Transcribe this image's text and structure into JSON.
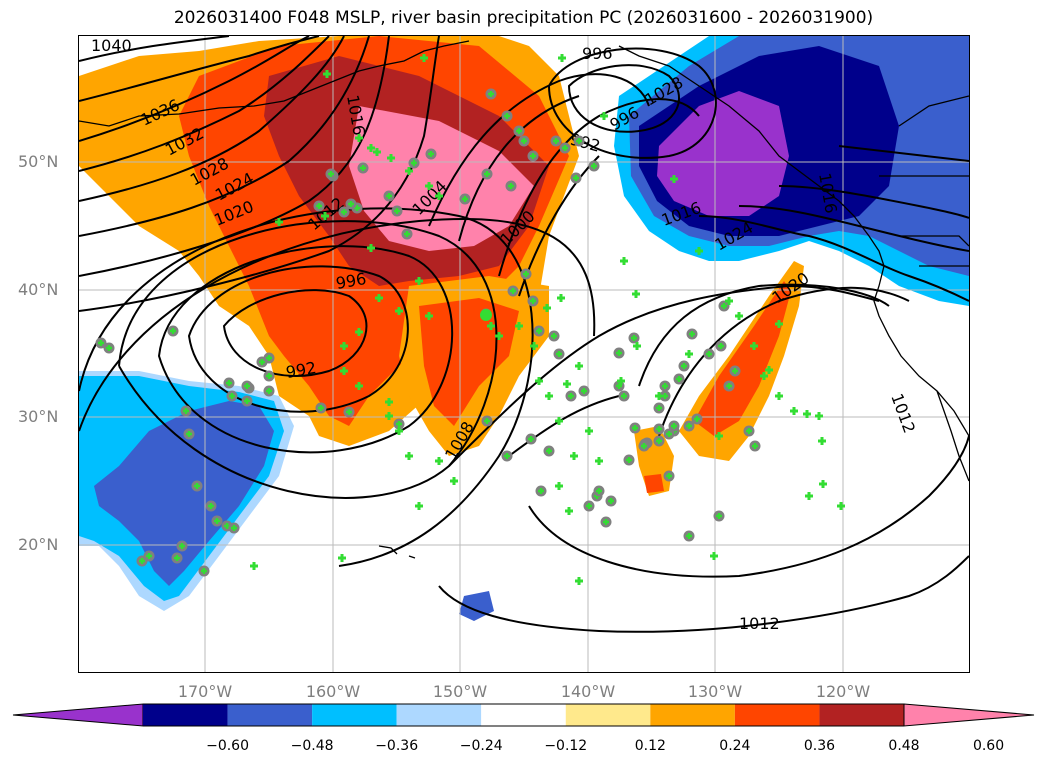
{
  "title": "2026031400 F048 MSLP, river basin precipitation PC (2026031600 - 2026031900)",
  "lat_labels": [
    "50°N",
    "40°N",
    "30°N",
    "20°N"
  ],
  "lon_labels": [
    "170°W",
    "160°W",
    "150°W",
    "140°W",
    "130°W",
    "120°W"
  ],
  "isobar_labels": {
    "l1040": "1040",
    "l1036": "1036",
    "l1032": "1032",
    "l1028": "1028",
    "l1024": "1024",
    "l1020": "1020",
    "l1016": "1016",
    "l1012": "1012",
    "l1004": "1004",
    "l1000": "1000",
    "l996_top": "996",
    "l996_left": "996",
    "l992_left": "992",
    "l992_top": "992",
    "l996_low": "996",
    "l1016_r": "1016",
    "l1024_r": "1024",
    "l1020_r": "1020",
    "l1008": "1008",
    "l1012_bottom": "1012",
    "l1012_r": "1012",
    "l1016_far": "1016",
    "l1028_far": "1028"
  },
  "colorbar": {
    "colors": [
      "#9932cc",
      "#00008b",
      "#3a5fcd",
      "#00bfff",
      "#add8ff",
      "#ffffff",
      "#ffe98c",
      "#ffa500",
      "#ff4500",
      "#b22222",
      "#ff82ab"
    ],
    "ticks": [
      "−0.60",
      "−0.48",
      "−0.36",
      "−0.24",
      "−0.12",
      "0.12",
      "0.24",
      "0.36",
      "0.48",
      "0.60"
    ]
  },
  "marker_color": "#33dd33",
  "marker_circle_color": "#808080"
}
